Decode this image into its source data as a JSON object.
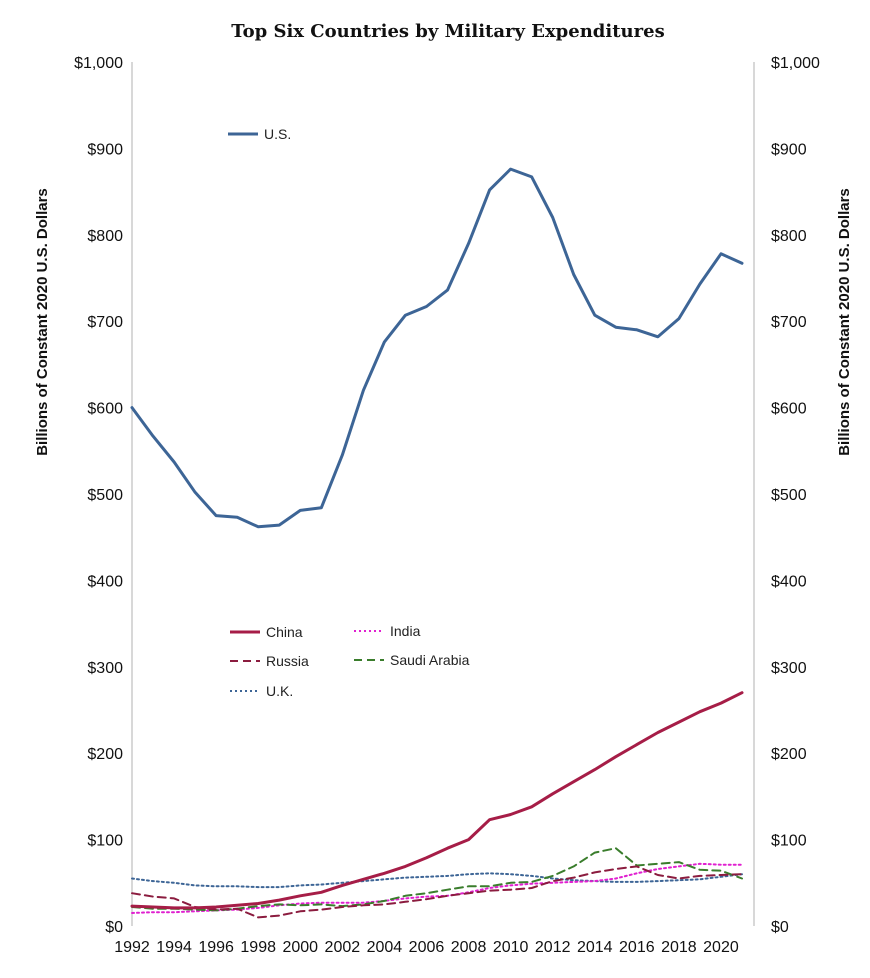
{
  "chart_data": {
    "type": "line",
    "title": "Top Six Countries by Military Expenditures",
    "ylabel_left": "Billions of Constant  2020 U.S. Dollars",
    "ylabel_right": "Billions of Constant  2020 U.S. Dollars",
    "xlabel": "",
    "ylim": [
      0,
      1000
    ],
    "xlim": [
      1992,
      2021
    ],
    "x_ticks": [
      "1992",
      "1994",
      "1996",
      "1998",
      "2000",
      "2002",
      "2004",
      "2006",
      "2008",
      "2010",
      "2012",
      "2014",
      "2016",
      "2018",
      "2020"
    ],
    "y_ticks": [
      "$0",
      "$100",
      "$200",
      "$300",
      "$400",
      "$500",
      "$600",
      "$700",
      "$800",
      "$900",
      "$1,000"
    ],
    "x": [
      1992,
      1993,
      1994,
      1995,
      1996,
      1997,
      1998,
      1999,
      2000,
      2001,
      2002,
      2003,
      2004,
      2005,
      2006,
      2007,
      2008,
      2009,
      2010,
      2011,
      2012,
      2013,
      2014,
      2015,
      2016,
      2017,
      2018,
      2019,
      2020,
      2021
    ],
    "series": [
      {
        "name": "U.S.",
        "color": "#3d6596",
        "dash": "solid",
        "values": [
          600,
          567,
          537,
          502,
          475,
          473,
          462,
          464,
          481,
          484,
          545,
          620,
          676,
          707,
          717,
          736,
          790,
          852,
          876,
          867,
          820,
          754,
          707,
          693,
          690,
          682,
          703,
          743,
          778,
          767
        ]
      },
      {
        "name": "China",
        "color": "#a61d47",
        "dash": "solid",
        "values": [
          23,
          22,
          21,
          21,
          22,
          24,
          26,
          30,
          35,
          39,
          47,
          54,
          61,
          69,
          79,
          90,
          100,
          123,
          129,
          138,
          153,
          167,
          181,
          196,
          210,
          224,
          236,
          248,
          258,
          270
        ]
      },
      {
        "name": "Russia",
        "color": "#8b1c3f",
        "dash": "dashed",
        "values": [
          38,
          34,
          32,
          22,
          19,
          20,
          10,
          12,
          17,
          19,
          22,
          24,
          25,
          28,
          31,
          35,
          38,
          41,
          42,
          44,
          52,
          56,
          62,
          66,
          69,
          59,
          55,
          58,
          59,
          60
        ]
      },
      {
        "name": "U.K.",
        "color": "#3d6596",
        "dash": "dotted",
        "values": [
          55,
          52,
          50,
          47,
          46,
          46,
          45,
          45,
          47,
          48,
          50,
          52,
          54,
          56,
          57,
          58,
          60,
          61,
          60,
          58,
          55,
          53,
          52,
          51,
          51,
          52,
          53,
          54,
          57,
          60
        ]
      },
      {
        "name": "India",
        "color": "#e020d0",
        "dash": "dotted",
        "values": [
          15,
          16,
          16,
          17,
          18,
          19,
          21,
          24,
          26,
          27,
          27,
          27,
          29,
          32,
          34,
          35,
          39,
          44,
          47,
          49,
          50,
          51,
          52,
          55,
          61,
          66,
          69,
          72,
          71,
          71
        ]
      },
      {
        "name": "Saudi Arabia",
        "color": "#3a7d2c",
        "dash": "dashed",
        "values": [
          22,
          20,
          20,
          19,
          18,
          20,
          23,
          25,
          24,
          25,
          23,
          25,
          29,
          35,
          38,
          42,
          46,
          46,
          50,
          51,
          58,
          69,
          85,
          90,
          70,
          72,
          74,
          65,
          64,
          55
        ]
      }
    ]
  }
}
